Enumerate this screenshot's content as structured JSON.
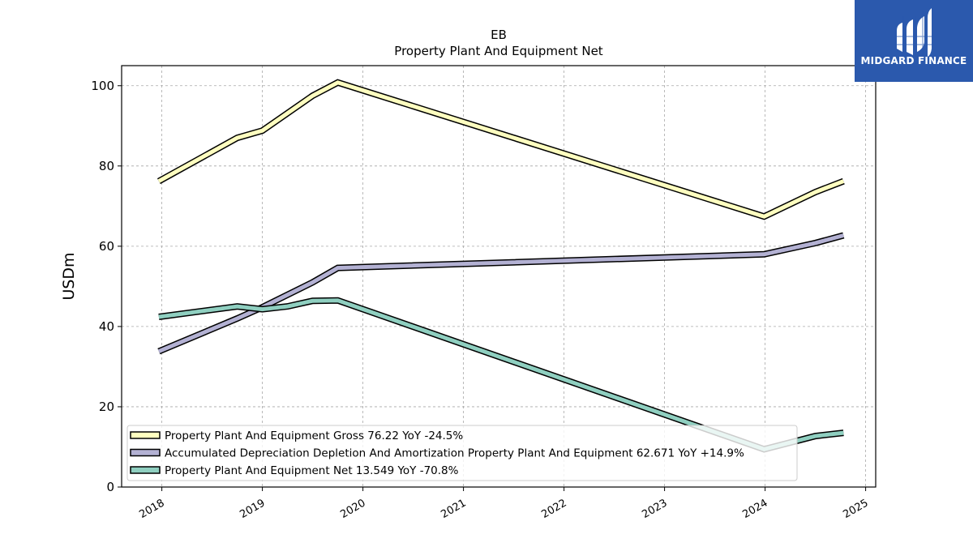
{
  "chart_data": {
    "type": "line",
    "title": "EB",
    "subtitle": "Property Plant And Equipment Net",
    "ylabel": "USDm",
    "xlim": [
      2017.6,
      2025.1
    ],
    "ylim": [
      0,
      105
    ],
    "x_ticks": [
      2018,
      2019,
      2020,
      2021,
      2022,
      2023,
      2024,
      2025
    ],
    "x_tick_labels": [
      "2018",
      "2019",
      "2020",
      "2021",
      "2022",
      "2023",
      "2024",
      "2025"
    ],
    "y_ticks": [
      0,
      20,
      40,
      60,
      80,
      100
    ],
    "y_tick_labels": [
      "0",
      "20",
      "40",
      "60",
      "80",
      "100"
    ],
    "grid": true,
    "legend_position": "lower-left",
    "series": [
      {
        "name": "Property Plant And Equipment Gross",
        "legend_label": "Property Plant And Equipment Gross  76.22 YoY -24.5%",
        "color": "#ffffc0",
        "x": [
          2017.97,
          2018.75,
          2019.0,
          2019.5,
          2019.75,
          2023.99,
          2024.5,
          2024.78
        ],
        "y": [
          76.2,
          87.0,
          88.8,
          97.5,
          100.8,
          67.4,
          73.5,
          76.2
        ]
      },
      {
        "name": "Accumulated Depreciation Depletion And Amortization Property Plant And Equipment",
        "legend_label": "Accumulated Depreciation Depletion And Amortization Property Plant And Equipment  62.671 YoY +14.9%",
        "color": "#b3b1d3",
        "x": [
          2017.97,
          2018.75,
          2019.0,
          2019.5,
          2019.75,
          2023.99,
          2024.5,
          2024.78
        ],
        "y": [
          33.8,
          42.0,
          44.8,
          51.0,
          54.6,
          58.0,
          60.8,
          62.7
        ]
      },
      {
        "name": "Property Plant And Equipment Net",
        "legend_label": "Property Plant And Equipment Net  13.549 YoY -70.8%",
        "color": "#8fcfc0",
        "x": [
          2017.97,
          2018.75,
          2019.0,
          2019.25,
          2019.5,
          2019.75,
          2023.99,
          2024.5,
          2024.78
        ],
        "y": [
          42.4,
          45.0,
          44.3,
          45.0,
          46.4,
          46.5,
          9.4,
          12.7,
          13.5
        ]
      }
    ]
  },
  "logo": {
    "text": "MIDGARD FINANCE",
    "bg_color": "#2b59ad"
  }
}
